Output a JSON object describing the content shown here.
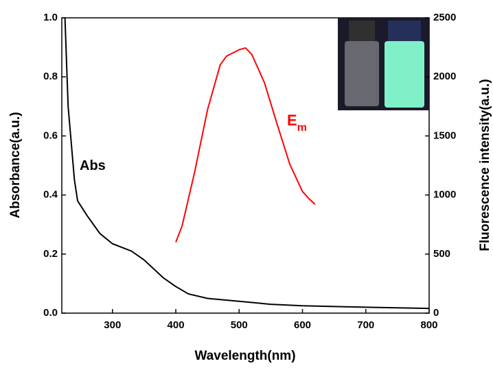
{
  "chart_data": {
    "type": "line",
    "x_label": "Wavelength(nm)",
    "y_label": "Absorbance(a.u.)",
    "y2_label": "Fluorescence intensity(a.u.)",
    "xlim": [
      220,
      800
    ],
    "xticks": [
      300,
      400,
      500,
      600,
      700,
      800
    ],
    "ylim": [
      0,
      1
    ],
    "yticks": [
      {
        "value": 0,
        "label": "0.0"
      },
      0.2,
      0.4,
      0.6,
      0.8,
      {
        "value": 1,
        "label": "1.0"
      }
    ],
    "y2lim": [
      0,
      2500
    ],
    "y2ticks": [
      0,
      500,
      1000,
      1500,
      2000,
      2500
    ],
    "series": [
      {
        "name": "Abs",
        "color": "#000000",
        "x": [
          225,
          230,
          240,
          245,
          260,
          280,
          300,
          330,
          350,
          380,
          400,
          420,
          450,
          500,
          550,
          600,
          700,
          800
        ],
        "values": [
          1.0,
          0.7,
          0.45,
          0.38,
          0.33,
          0.27,
          0.235,
          0.21,
          0.18,
          0.12,
          0.09,
          0.065,
          0.05,
          0.04,
          0.03,
          0.025,
          0.02,
          0.016
        ]
      },
      {
        "name": "E",
        "subscript": "m",
        "color": "#ff0000",
        "axis": "y2",
        "x": [
          400,
          410,
          430,
          450,
          470,
          480,
          500,
          510,
          520,
          540,
          560,
          580,
          600,
          610,
          620
        ],
        "values": [
          600,
          740,
          1200,
          1720,
          2100,
          2175,
          2230,
          2245,
          2190,
          1950,
          1600,
          1260,
          1030,
          970,
          920
        ]
      }
    ]
  }
}
